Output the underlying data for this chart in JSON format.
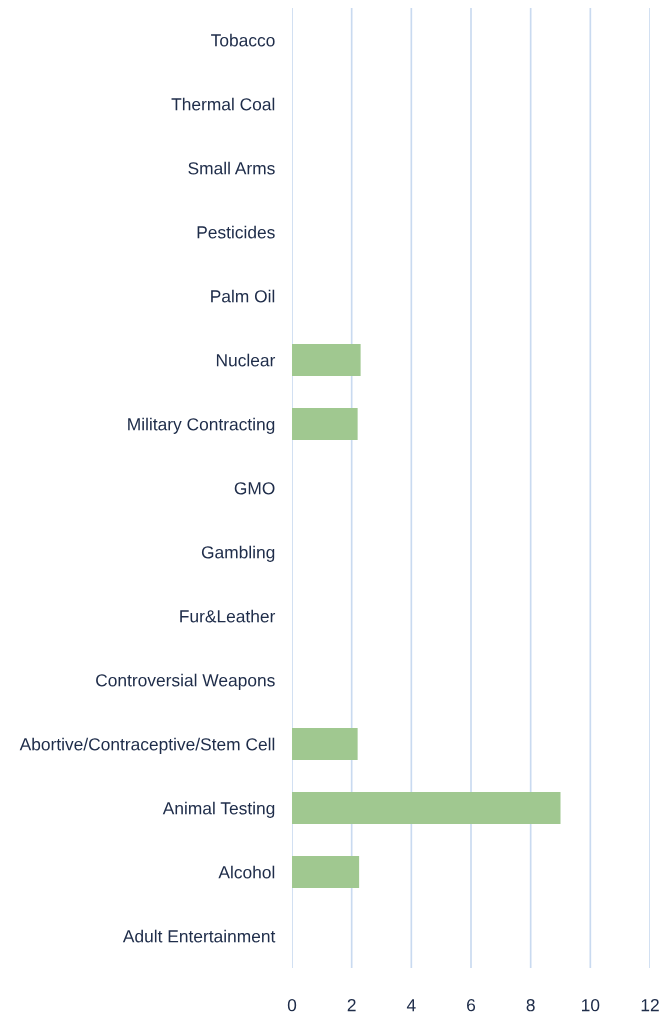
{
  "chart_data": {
    "type": "bar",
    "orientation": "horizontal",
    "categories": [
      "Tobacco",
      "Thermal Coal",
      "Small Arms",
      "Pesticides",
      "Palm Oil",
      "Nuclear",
      "Military Contracting",
      "GMO",
      "Gambling",
      "Fur&Leather",
      "Controversial Weapons",
      "Abortive/Contraceptive/Stem Cell",
      "Animal Testing",
      "Alcohol",
      "Adult Entertainment"
    ],
    "values": [
      0,
      0,
      0,
      0,
      0,
      2.3,
      2.2,
      0,
      0,
      0,
      0,
      2.2,
      9,
      2.25,
      0
    ],
    "color": "#a0c890",
    "xlim": [
      0,
      12
    ],
    "xticks": [
      0,
      2,
      4,
      6,
      8,
      10,
      12
    ],
    "grid": "x",
    "legend": false
  }
}
